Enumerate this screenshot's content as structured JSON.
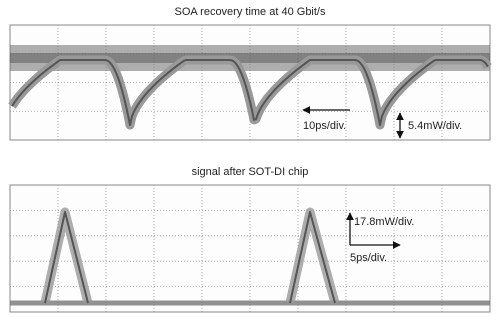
{
  "top_panel": {
    "title": "SOA recovery time at 40 Gbit/s",
    "time_scale": "10ps/div.",
    "power_scale": "5.4mW/div."
  },
  "bottom_panel": {
    "title": "signal after SOT-DI chip",
    "power_scale": "17.8mW/div.",
    "time_scale": "5ps/div."
  }
}
